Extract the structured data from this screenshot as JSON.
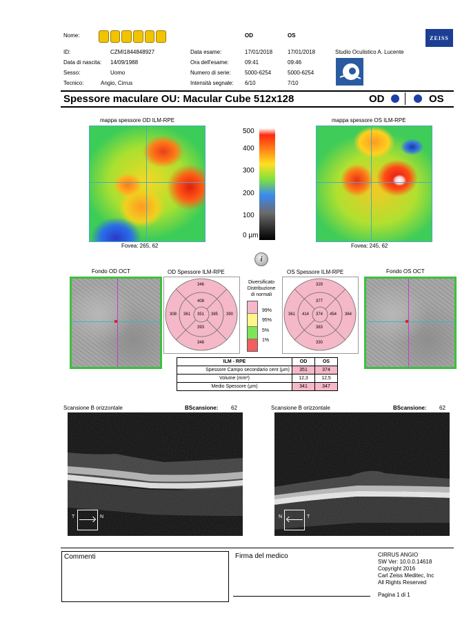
{
  "header": {
    "labels": {
      "name": "Nome:",
      "id": "ID:",
      "dob": "Data di nascita:",
      "sex": "Sesso:",
      "technician": "Tecnico:",
      "exam_date": "Data esame:",
      "exam_time": "Ora dell'esame:",
      "serial": "Numero di serie:",
      "signal": "Intensità segnale:"
    },
    "patient": {
      "id": "CZMI1844848927",
      "dob": "14/09/1988",
      "sex": "Uomo",
      "technician": "Angio, Cirrus"
    },
    "col_od": "OD",
    "col_os": "OS",
    "od": {
      "exam_date": "17/01/2018",
      "exam_time": "09:41",
      "serial": "5000-6254",
      "signal": "6/10"
    },
    "os": {
      "exam_date": "17/01/2018",
      "exam_time": "09:46",
      "serial": "5000-6254",
      "signal": "7/10"
    },
    "clinic": "Studio Oculistico A. Lucente",
    "brand": "ZEISS"
  },
  "title": "Spessore maculare OU: Macular Cube 512x128",
  "eye_od": "OD",
  "eye_os": "OS",
  "maps": {
    "od_title": "mappa spessore OD ILM-RPE",
    "os_title": "mappa spessore OS ILM-RPE",
    "od_fovea": "Fovea: 265, 62",
    "os_fovea": "Fovea: 245, 62",
    "scale_labels": [
      "500",
      "400",
      "300",
      "200",
      "100",
      "0 µm"
    ]
  },
  "fundus": {
    "od_title": "Fondo OD OCT",
    "os_title": "Fondo OS OCT"
  },
  "etdrs": {
    "od_title": "OD Spessore ILM-RPE",
    "os_title": "OS Spessore ILM-RPE",
    "od": {
      "outer_top": "346",
      "inner_top": "408",
      "outer_left": "308",
      "inner_left": "361",
      "center": "351",
      "inner_right": "385",
      "outer_right": "390",
      "inner_bottom": "393",
      "outer_bottom": "348"
    },
    "os": {
      "outer_top": "329",
      "inner_top": "377",
      "outer_left": "361",
      "inner_left": "414",
      "center": "374",
      "inner_right": "454",
      "outer_right": "364",
      "inner_bottom": "383",
      "outer_bottom": "330"
    }
  },
  "norms": {
    "title": "Diversificato\nDistribuzione\ndi normali",
    "levels": [
      {
        "label": "99%",
        "color": "#f4b8c8"
      },
      {
        "label": "95%",
        "color": "#fff58a"
      },
      {
        "label": "5%",
        "color": "#7ee55a"
      },
      {
        "label": "1%",
        "color": "#f06060"
      }
    ]
  },
  "ilm_table": {
    "header": [
      "ILM - RPE",
      "OD",
      "OS"
    ],
    "rows": [
      {
        "label": "Spessore Campo secondario cent (µm)",
        "od": "351",
        "os": "374"
      },
      {
        "label": "Volume (mm³)",
        "od": "12,3",
        "os": "12,5"
      },
      {
        "label": "Medio Spessore (µm)",
        "od": "341",
        "os": "347"
      }
    ]
  },
  "bscans": {
    "left": {
      "title": "Scansione B orizzontale",
      "label": "BScansione:",
      "value": "62",
      "dir_left": "T",
      "dir_right": "N"
    },
    "right": {
      "title": "Scansione B orizzontale",
      "label": "BScansione:",
      "value": "62",
      "dir_left": "N",
      "dir_right": "T"
    }
  },
  "footer": {
    "comments": "Commenti",
    "signature": "Firma del medico",
    "device": "CIRRUS ANGIO",
    "sw": "SW Ver: 10.0.0.14618",
    "copyright": "Copyright 2016",
    "company": "Carl Zeiss Meditec, Inc",
    "rights": "All Rights Reserved",
    "page": "Pagina 1 di 1"
  },
  "colors": {
    "brand": "#1c3f94",
    "eye_dot": "#1c3fa8",
    "frame_green": "#3cc03c",
    "pink": "#f4b8c8"
  }
}
